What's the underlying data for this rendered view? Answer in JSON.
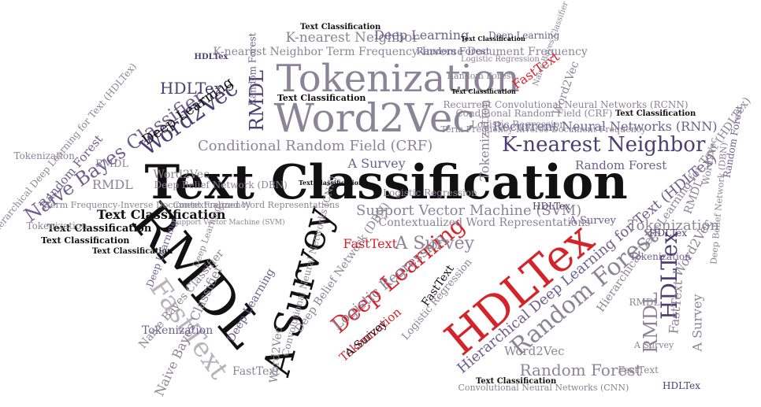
{
  "colors": {
    "black": "#111111",
    "purple_dark": "#4a3f73",
    "purple_mid": "#6b5f8f",
    "gray_mauve": "#8c8496",
    "gray_light": "#b8b2bd",
    "red": "#d4242a",
    "background": "#ffffff"
  },
  "words": [
    {
      "text": "Text Classification",
      "color": "black"
    },
    {
      "text": "Tokenization",
      "color": "gray_mauve"
    },
    {
      "text": "Word2Vec",
      "color": "gray_mauve"
    },
    {
      "text": "RMDL",
      "color": "black"
    },
    {
      "text": "A Survey",
      "color": "black"
    },
    {
      "text": "HDLTex",
      "color": "red"
    },
    {
      "text": "Deep Learning",
      "color": "red"
    },
    {
      "text": "K-nearest Neighbor",
      "color": "purple_dark"
    },
    {
      "text": "Conditional Random Field (CRF)",
      "color": "gray_mauve"
    },
    {
      "text": "Support Vector Machine (SVM)",
      "color": "gray_mauve"
    },
    {
      "text": "Naive Bayes Classifier",
      "color": "purple_mid"
    },
    {
      "text": "Word2Vec",
      "color": "purple_dark"
    },
    {
      "text": "Deep Learning",
      "color": "black"
    },
    {
      "text": "Random Forest",
      "color": "gray_mauve"
    },
    {
      "text": "FastText",
      "color": "gray_light"
    },
    {
      "text": "Logistic Regression",
      "color": "gray_mauve"
    },
    {
      "text": "Recurrent Neural Networks (RNN)",
      "color": "purple_mid"
    },
    {
      "text": "Text Classification",
      "color": "black"
    },
    {
      "text": "Text Classification",
      "color": "black"
    },
    {
      "text": "Text Classification",
      "color": "black"
    },
    {
      "text": "K-nearest Neighbor",
      "color": "gray_mauve"
    },
    {
      "text": "K-nearest Neighbor Term Frequency-Inverse Document Frequency",
      "color": "gray_mauve"
    },
    {
      "text": "Hierarchical Deep Learning for Text (HDLTex)",
      "color": "gray_mauve"
    },
    {
      "text": "Random Forest",
      "color": "purple_mid"
    },
    {
      "text": "Tokenization",
      "color": "gray_mauve"
    },
    {
      "text": "Contextualized Word Representations",
      "color": "gray_mauve"
    },
    {
      "text": "Recurrent Convolutional Neural Networks (RCNN)",
      "color": "gray_mauve"
    },
    {
      "text": "Random Forest",
      "color": "purple_mid"
    },
    {
      "text": "Hierarchical Deep Learning for Text (HDLTex)",
      "color": "purple_mid"
    },
    {
      "text": "Word2Vec",
      "color": "gray_mauve"
    },
    {
      "text": "RMDL",
      "color": "purple_dark"
    },
    {
      "text": "HDLTex",
      "color": "purple_dark"
    },
    {
      "text": "Tokenization",
      "color": "gray_mauve"
    },
    {
      "text": "A Survey",
      "color": "purple_mid"
    },
    {
      "text": "Deep Learning",
      "color": "purple_mid"
    },
    {
      "text": "Deep Belief Network (DBN)",
      "color": "gray_mauve"
    },
    {
      "text": "Logistic Regression",
      "color": "gray_mauve"
    },
    {
      "text": "FastText",
      "color": "black"
    },
    {
      "text": "Tokenization",
      "color": "red"
    },
    {
      "text": "A Survey",
      "color": "black"
    },
    {
      "text": "FastText",
      "color": "red"
    },
    {
      "text": "HDLTex",
      "color": "purple_dark"
    },
    {
      "text": "RMDL",
      "color": "gray_mauve"
    },
    {
      "text": "RMDL",
      "color": "gray_mauve"
    },
    {
      "text": "A Survey",
      "color": "gray_mauve"
    },
    {
      "text": "Tokenization",
      "color": "gray_mauve"
    },
    {
      "text": "HDLTex",
      "color": "purple_dark"
    },
    {
      "text": "Text Classification",
      "color": "black"
    },
    {
      "text": "Text Classification",
      "color": "black"
    },
    {
      "text": "Text Classification",
      "color": "black"
    },
    {
      "text": "Text Classification",
      "color": "black"
    },
    {
      "text": "Text Classification",
      "color": "black"
    },
    {
      "text": "Convolutional Neural Networks (CNN)",
      "color": "gray_mauve"
    },
    {
      "text": "Deep Learning",
      "color": "purple_mid"
    },
    {
      "text": "Deep Belief Network (DBN)",
      "color": "gray_mauve"
    },
    {
      "text": "Word2Vec",
      "color": "gray_mauve"
    },
    {
      "text": "RMDL",
      "color": "gray_mauve"
    },
    {
      "text": "FastText",
      "color": "gray_mauve"
    },
    {
      "text": "Naive Bayes Classifier",
      "color": "gray_mauve"
    },
    {
      "text": "Tokenization",
      "color": "purple_mid"
    },
    {
      "text": "Random Forest",
      "color": "gray_mauve"
    },
    {
      "text": "Deep Learning",
      "color": "gray_mauve"
    },
    {
      "text": "Term Frequency-Inverse Document Frequency",
      "color": "gray_mauve"
    },
    {
      "text": "Logistic Regression",
      "color": "gray_mauve"
    },
    {
      "text": "Random Forest",
      "color": "purple_mid"
    },
    {
      "text": "FastText",
      "color": "red"
    },
    {
      "text": "A Survey",
      "color": "gray_mauve"
    },
    {
      "text": "Convolutional Neural Networks (CNN)",
      "color": "gray_mauve"
    },
    {
      "text": "Word2Vec",
      "color": "gray_mauve"
    },
    {
      "text": "Hierarchical Deep Learning for Text (HDLTex)",
      "color": "gray_mauve"
    },
    {
      "text": "FastText",
      "color": "gray_mauve"
    },
    {
      "text": "RMDL",
      "color": "gray_mauve"
    },
    {
      "text": "A Survey",
      "color": "purple_mid"
    },
    {
      "text": "HDLTex",
      "color": "purple_dark"
    },
    {
      "text": "Word2Vec",
      "color": "gray_mauve"
    },
    {
      "text": "Random Forest",
      "color": "purple_mid"
    },
    {
      "text": "Deep Learning",
      "color": "purple_mid"
    },
    {
      "text": "Logistic Regression",
      "color": "gray_mauve"
    },
    {
      "text": "Naive Bayes Classifier",
      "color": "gray_mauve"
    },
    {
      "text": "Word2Vec",
      "color": "gray_mauve"
    },
    {
      "text": "Deep Learning",
      "color": "purple_mid"
    },
    {
      "text": "HDLTex",
      "color": "purple_dark"
    },
    {
      "text": "Text Classification",
      "color": "black"
    },
    {
      "text": "Conditional Random Field (CRF)",
      "color": "gray_mauve"
    },
    {
      "text": "Term Frequency-Inverse Document Frequency",
      "color": "gray_mauve"
    },
    {
      "text": "Text Classification",
      "color": "black"
    },
    {
      "text": "Text Classification",
      "color": "black"
    },
    {
      "text": "Random Forest",
      "color": "purple_mid"
    },
    {
      "text": "Support Vector Machine (SVM)",
      "color": "gray_mauve"
    },
    {
      "text": "Contextualized Word Representations",
      "color": "gray_mauve"
    },
    {
      "text": "Tokenization",
      "color": "gray_mauve"
    },
    {
      "text": "RMDL",
      "color": "gray_mauve"
    },
    {
      "text": "Naive Bayes Classifier",
      "color": "gray_mauve"
    },
    {
      "text": "Logistic Regression",
      "color": "gray_mauve"
    },
    {
      "text": "Random Forest",
      "color": "gray_mauve"
    },
    {
      "text": "Deep Belief Network (DBN)",
      "color": "gray_mauve"
    },
    {
      "text": "A Survey",
      "color": "gray_mauve"
    },
    {
      "text": "Tokenization",
      "color": "purple_mid"
    },
    {
      "text": "Word2Vec",
      "color": "gray_mauve"
    },
    {
      "text": "FastText",
      "color": "gray_mauve"
    },
    {
      "text": "HDLTex",
      "color": "purple_dark"
    }
  ]
}
